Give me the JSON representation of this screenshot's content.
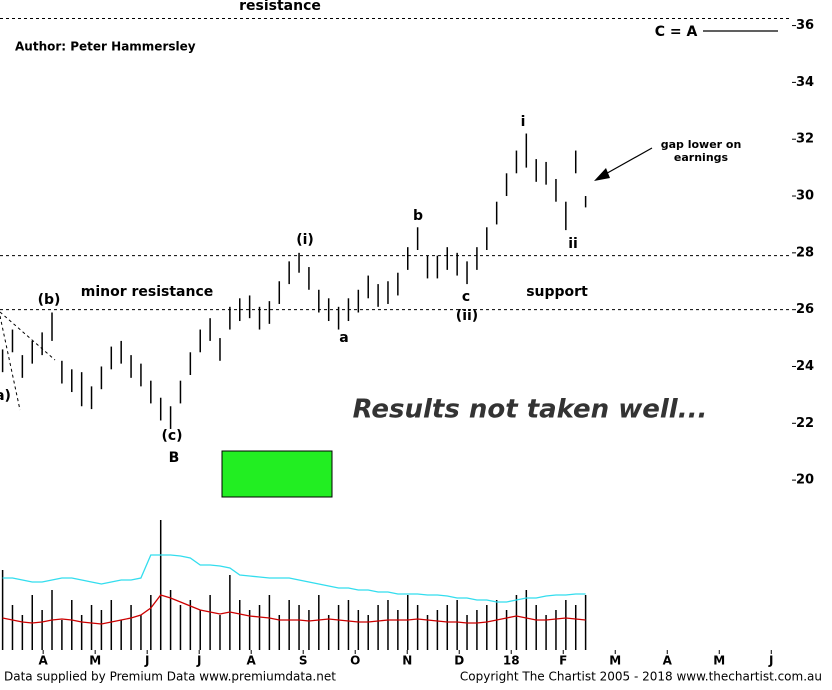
{
  "header": {
    "author": "Author: Peter Hammersley"
  },
  "chart_data": [
    {
      "type": "hilo",
      "color": "#000000",
      "x": [
        3.72,
        3.91,
        4.1,
        4.29,
        4.48,
        4.67,
        4.86,
        5.05,
        5.24,
        5.43,
        5.62,
        5.81,
        6.0,
        6.19,
        6.38,
        6.57,
        6.76,
        6.95,
        7.14,
        7.33,
        7.52,
        7.71,
        7.9,
        8.09,
        8.28,
        8.47,
        8.66,
        8.85,
        9.04,
        9.23,
        9.42,
        9.61,
        9.8,
        9.99,
        10.18,
        10.37,
        10.56,
        10.75,
        10.94,
        11.13,
        11.32,
        11.51,
        11.7,
        11.89,
        12.08,
        12.27,
        12.46,
        12.65,
        12.84,
        13.03,
        13.22,
        13.41,
        13.6,
        13.79,
        13.98,
        14.17,
        14.36,
        14.55,
        14.74,
        14.93
      ],
      "high": [
        24.6,
        25.3,
        24.4,
        24.9,
        25.2,
        25.9,
        24.2,
        23.9,
        23.8,
        23.3,
        24.0,
        24.7,
        24.9,
        24.4,
        24.1,
        23.5,
        22.9,
        22.6,
        23.5,
        24.5,
        25.3,
        25.7,
        25.0,
        26.1,
        26.4,
        26.5,
        26.1,
        26.3,
        27.0,
        27.7,
        28.0,
        27.5,
        26.7,
        26.4,
        26.1,
        26.4,
        26.7,
        27.2,
        26.9,
        27.0,
        27.3,
        28.2,
        28.9,
        27.9,
        27.9,
        28.2,
        28.0,
        27.7,
        28.2,
        28.9,
        29.8,
        30.8,
        31.6,
        32.2,
        31.3,
        31.2,
        30.6,
        29.8,
        31.6,
        30.0
      ],
      "low": [
        23.8,
        24.5,
        23.6,
        24.1,
        24.4,
        24.9,
        23.4,
        23.1,
        22.6,
        22.5,
        23.2,
        23.9,
        24.1,
        23.6,
        23.3,
        22.7,
        22.1,
        21.8,
        22.7,
        23.7,
        24.5,
        24.9,
        24.2,
        25.3,
        25.6,
        25.7,
        25.3,
        25.5,
        26.2,
        26.9,
        27.3,
        26.7,
        25.9,
        25.6,
        25.3,
        25.6,
        25.9,
        26.4,
        26.1,
        26.2,
        26.5,
        27.4,
        28.1,
        27.1,
        27.1,
        27.4,
        27.2,
        26.9,
        27.4,
        28.1,
        29.0,
        30.0,
        30.8,
        31.0,
        30.5,
        30.4,
        29.8,
        28.8,
        30.8,
        29.6
      ],
      "xlim": [
        3.67,
        18.86
      ],
      "ylim": [
        19.3,
        36.9
      ],
      "yticks": [
        20,
        22,
        24,
        26,
        28,
        30,
        32,
        34,
        36
      ],
      "xticks": [
        {
          "value": 4.5,
          "label": "A"
        },
        {
          "value": 5.5,
          "label": "M"
        },
        {
          "value": 6.5,
          "label": "J"
        },
        {
          "value": 7.5,
          "label": "J"
        },
        {
          "value": 8.5,
          "label": "A"
        },
        {
          "value": 9.5,
          "label": "S"
        },
        {
          "value": 10.5,
          "label": "O"
        },
        {
          "value": 11.5,
          "label": "N"
        },
        {
          "value": 12.5,
          "label": "D"
        },
        {
          "value": 13.5,
          "label": "18"
        },
        {
          "value": 14.5,
          "label": "F"
        },
        {
          "value": 15.5,
          "label": "M"
        },
        {
          "value": 16.5,
          "label": "A"
        },
        {
          "value": 17.5,
          "label": "M"
        },
        {
          "value": 18.5,
          "label": "J"
        }
      ],
      "reference_lines": [
        36.25,
        27.9,
        26.0
      ],
      "annotations": [
        "resistance",
        "C = A",
        "gap lower on",
        "earnings",
        "i",
        "ii",
        "b",
        "(i)",
        "c",
        "(ii)",
        "a",
        "(b)",
        "minor resistance",
        "support",
        "(c)",
        "B",
        "a)",
        "Results not taken well..."
      ]
    },
    {
      "type": "volume",
      "color": "#000000",
      "ylim": [
        0,
        130
      ],
      "values": [
        80,
        45,
        35,
        55,
        40,
        60,
        30,
        50,
        35,
        45,
        40,
        50,
        30,
        45,
        35,
        55,
        130,
        60,
        45,
        50,
        40,
        55,
        35,
        75,
        50,
        40,
        45,
        55,
        35,
        50,
        45,
        40,
        55,
        35,
        45,
        50,
        40,
        35,
        45,
        50,
        40,
        55,
        45,
        35,
        40,
        45,
        50,
        35,
        40,
        45,
        50,
        40,
        55,
        60,
        45,
        35,
        40,
        50,
        45,
        55
      ],
      "series": [
        {
          "color": "#33ddee",
          "values": [
            72,
            72,
            70,
            68,
            68,
            70,
            72,
            72,
            70,
            68,
            66,
            68,
            70,
            70,
            72,
            95,
            95,
            95,
            94,
            92,
            85,
            85,
            84,
            82,
            75,
            74,
            73,
            72,
            72,
            72,
            70,
            68,
            66,
            64,
            62,
            62,
            60,
            60,
            58,
            58,
            56,
            56,
            56,
            55,
            55,
            54,
            52,
            52,
            50,
            50,
            48,
            48,
            50,
            52,
            52,
            54,
            55,
            55,
            56,
            56
          ]
        },
        {
          "color": "#cc0000",
          "values": [
            32,
            30,
            28,
            27,
            28,
            30,
            31,
            30,
            28,
            27,
            26,
            28,
            30,
            32,
            35,
            42,
            55,
            52,
            48,
            44,
            40,
            38,
            36,
            38,
            36,
            34,
            33,
            32,
            30,
            30,
            30,
            29,
            30,
            31,
            30,
            29,
            28,
            28,
            29,
            30,
            30,
            30,
            31,
            30,
            29,
            28,
            28,
            27,
            27,
            28,
            30,
            32,
            34,
            32,
            30,
            30,
            31,
            32,
            31,
            30
          ]
        }
      ]
    }
  ],
  "footer": {
    "left": "Data supplied by Premium Data www.premiumdata.net",
    "right": "Copyright The Chartist 2005 - 2018 www.thechartist.com.au"
  }
}
